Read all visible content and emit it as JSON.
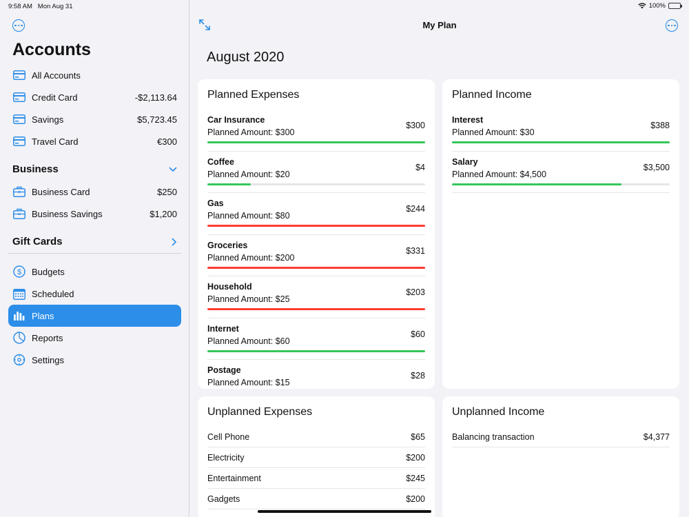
{
  "status": {
    "time": "9:58 AM",
    "date": "Mon Aug 31",
    "battery": "100%"
  },
  "sidebar": {
    "title": "Accounts",
    "accounts": [
      {
        "label": "All Accounts",
        "amount": "",
        "icon": "card-icon"
      },
      {
        "label": "Credit Card",
        "amount": "-$2,113.64",
        "icon": "card-icon"
      },
      {
        "label": "Savings",
        "amount": "$5,723.45",
        "icon": "card-icon"
      },
      {
        "label": "Travel Card",
        "amount": "€300",
        "icon": "card-icon"
      }
    ],
    "business": {
      "title": "Business",
      "items": [
        {
          "label": "Business Card",
          "amount": "$250",
          "icon": "briefcase-icon"
        },
        {
          "label": "Business Savings",
          "amount": "$1,200",
          "icon": "briefcase-icon"
        }
      ]
    },
    "gift_cards": {
      "title": "Gift Cards"
    },
    "nav": [
      {
        "label": "Budgets",
        "icon": "dollar-circle-icon"
      },
      {
        "label": "Scheduled",
        "icon": "calendar-icon"
      },
      {
        "label": "Plans",
        "icon": "bar-chart-icon",
        "active": true
      },
      {
        "label": "Reports",
        "icon": "pie-chart-icon"
      },
      {
        "label": "Settings",
        "icon": "gear-icon"
      }
    ]
  },
  "main": {
    "nav_title": "My Plan",
    "month": "August 2020",
    "planned_expenses": {
      "title": "Planned Expenses",
      "items": [
        {
          "name": "Car Insurance",
          "planned": "Planned Amount: $300",
          "amount": "$300",
          "progress": 1.0,
          "status_color": "#34c759"
        },
        {
          "name": "Coffee",
          "planned": "Planned Amount: $20",
          "amount": "$4",
          "progress": 0.2,
          "status_color": "#34c759"
        },
        {
          "name": "Gas",
          "planned": "Planned Amount: $80",
          "amount": "$244",
          "progress": 1.0,
          "status_color": "#ff3b30"
        },
        {
          "name": "Groceries",
          "planned": "Planned Amount: $200",
          "amount": "$331",
          "progress": 1.0,
          "status_color": "#ff3b30"
        },
        {
          "name": "Household",
          "planned": "Planned Amount: $25",
          "amount": "$203",
          "progress": 1.0,
          "status_color": "#ff3b30"
        },
        {
          "name": "Internet",
          "planned": "Planned Amount: $60",
          "amount": "$60",
          "progress": 1.0,
          "status_color": "#34c759"
        },
        {
          "name": "Postage",
          "planned": "Planned Amount: $15",
          "amount": "$28",
          "progress": 1.0,
          "status_color": "#ff3b30"
        }
      ]
    },
    "planned_income": {
      "title": "Planned Income",
      "items": [
        {
          "name": "Interest",
          "planned": "Planned Amount: $30",
          "amount": "$388",
          "progress": 1.0,
          "status_color": "#34c759"
        },
        {
          "name": "Salary",
          "planned": "Planned Amount: $4,500",
          "amount": "$3,500",
          "progress": 0.78,
          "status_color": "#34c759"
        }
      ]
    },
    "unplanned_expenses": {
      "title": "Unplanned Expenses",
      "items": [
        {
          "name": "Cell Phone",
          "amount": "$65"
        },
        {
          "name": "Electricity",
          "amount": "$200"
        },
        {
          "name": "Entertainment",
          "amount": "$245"
        },
        {
          "name": "Gadgets",
          "amount": "$200"
        }
      ]
    },
    "unplanned_income": {
      "title": "Unplanned Income",
      "items": [
        {
          "name": "Balancing transaction",
          "amount": "$4,377"
        }
      ]
    }
  },
  "colors": {
    "accent": "#2c8ee8",
    "over_budget": "#ff3b30",
    "on_budget": "#34c759"
  }
}
